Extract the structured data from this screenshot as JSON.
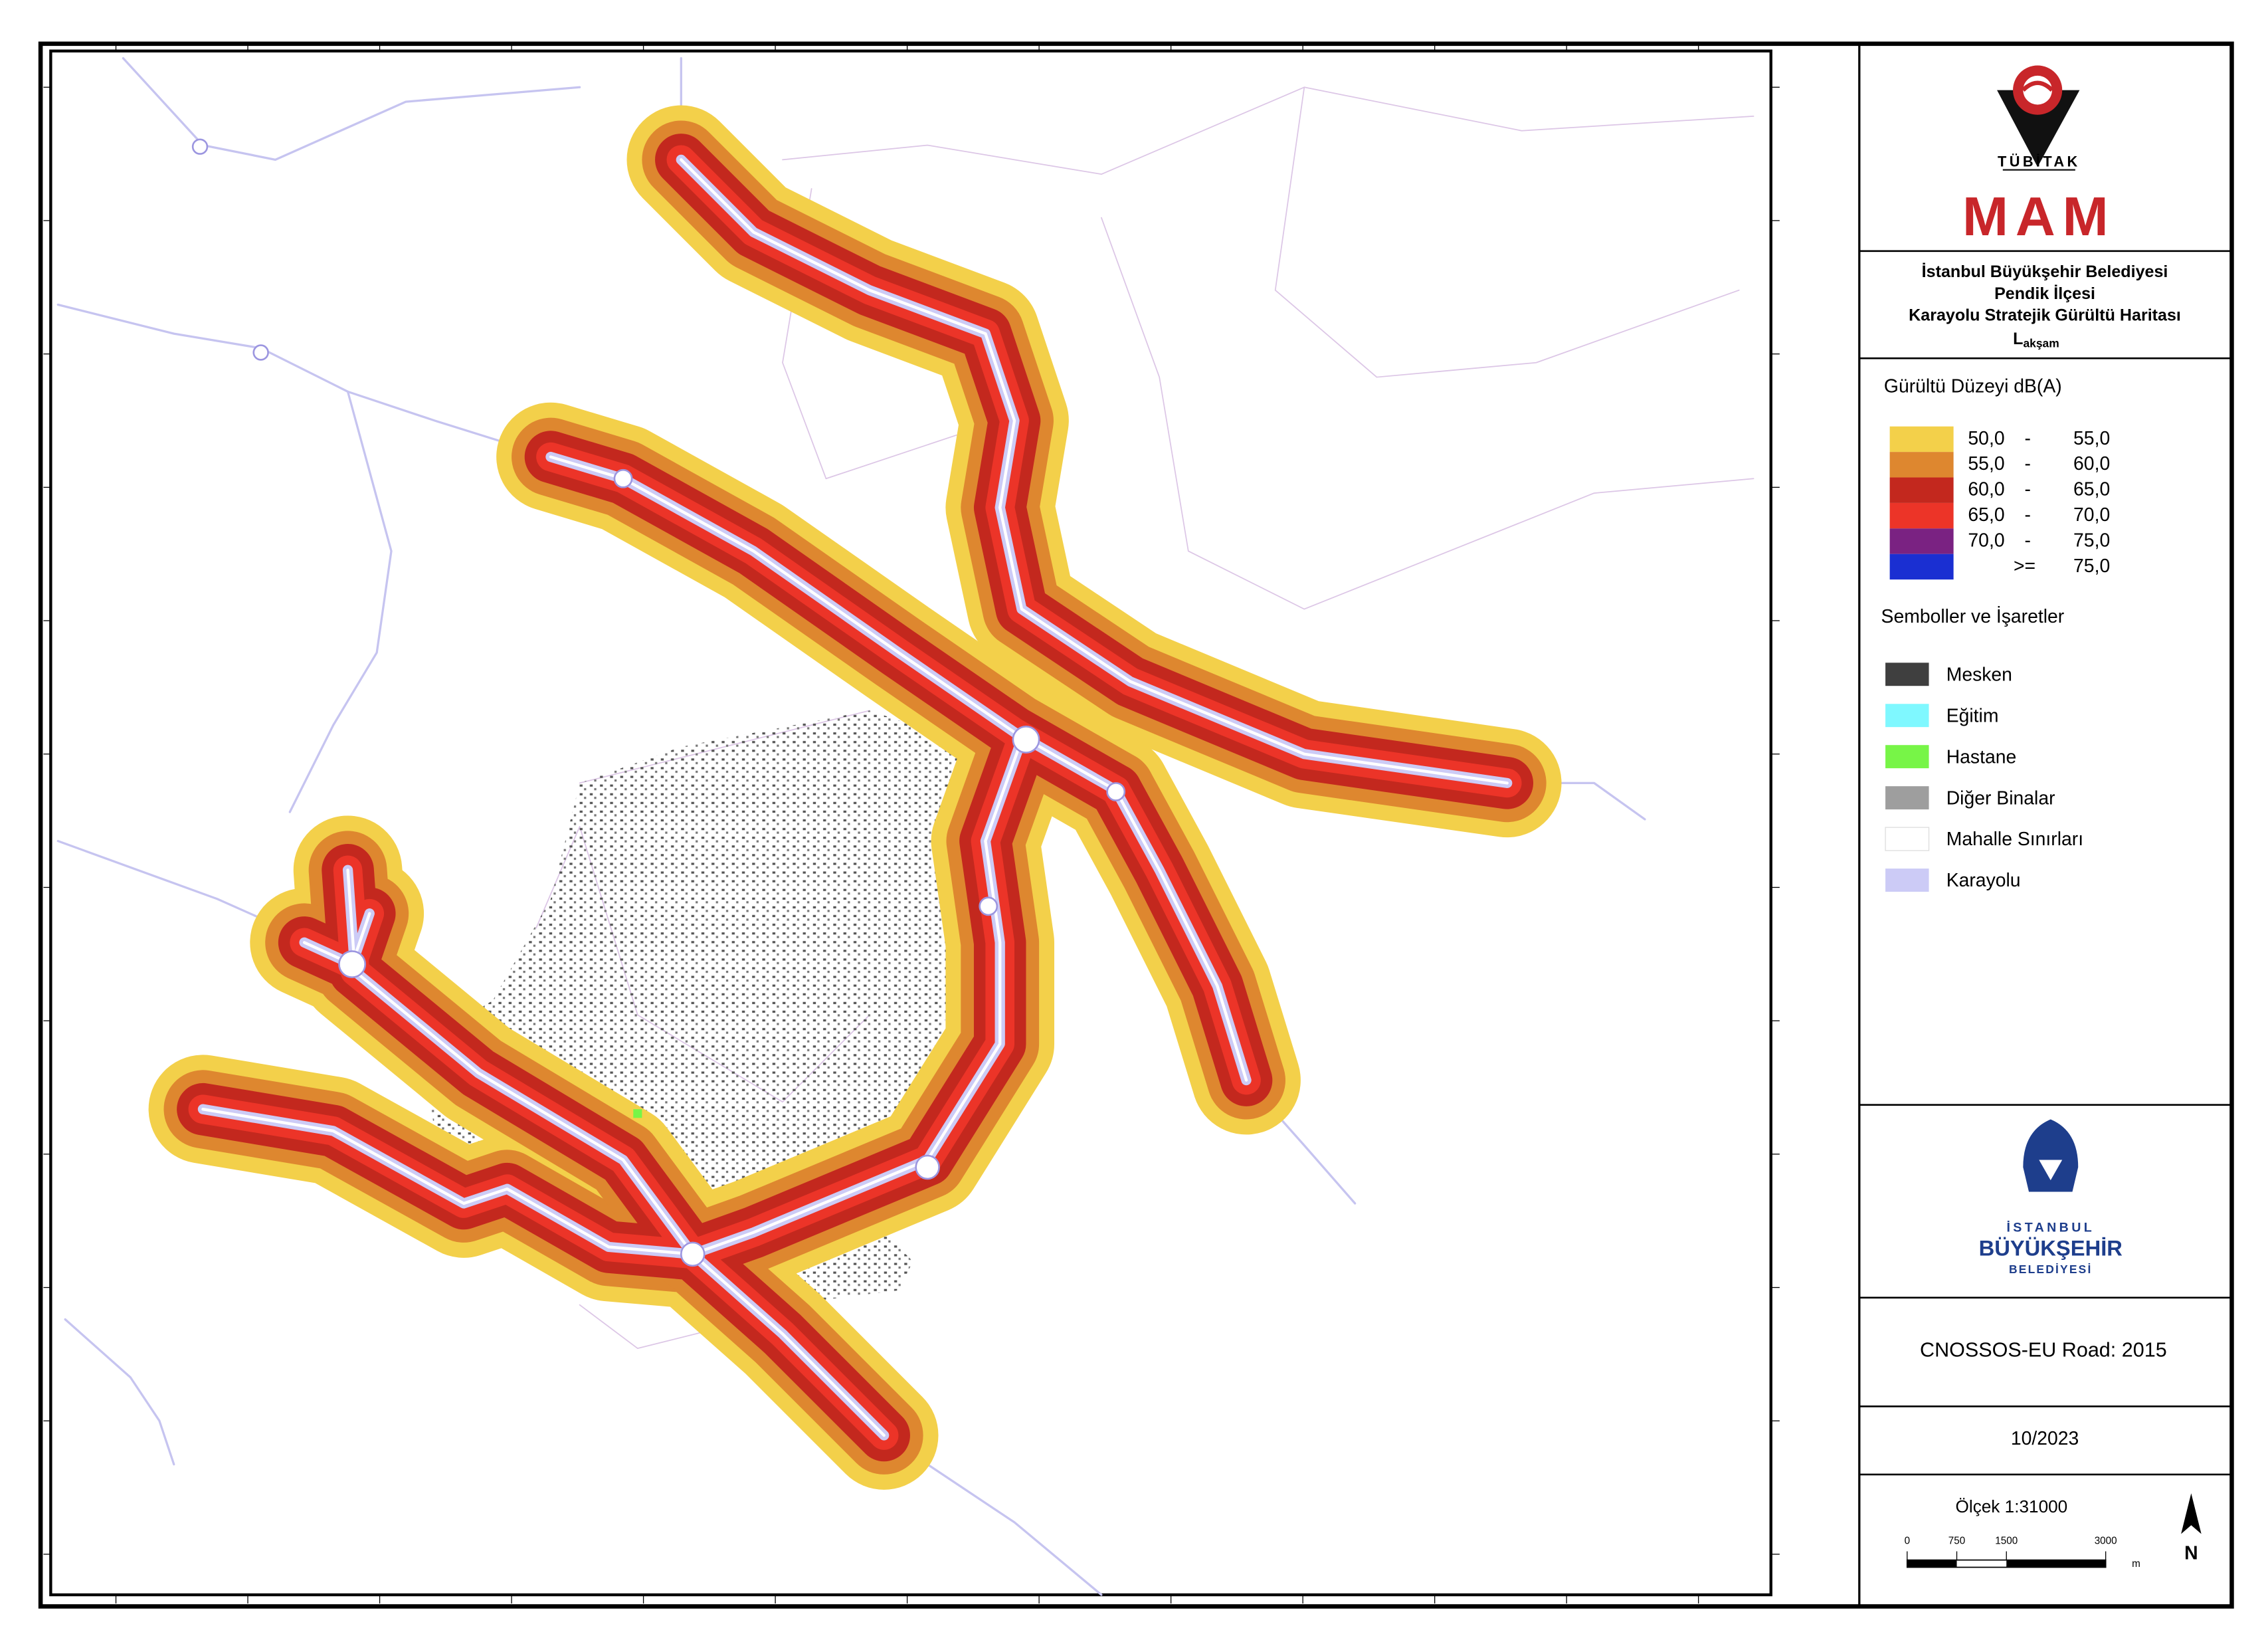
{
  "logo": {
    "org": "TÜBİTAK",
    "unit": "MAM"
  },
  "title": {
    "line1": "İstanbul Büyükşehir Belediyesi",
    "line2": "Pendik İlçesi",
    "line3": "Karayolu Stratejik Gürültü Haritası",
    "indicator": "L",
    "indicator_sub": "akşam"
  },
  "legend": {
    "title": "Gürültü Düzeyi dB(A)",
    "levels": [
      {
        "color": "#f3d04a",
        "from": "50,0",
        "sep": "-",
        "to": "55,0"
      },
      {
        "color": "#de872f",
        "from": "55,0",
        "sep": "-",
        "to": "60,0"
      },
      {
        "color": "#c3281e",
        "from": "60,0",
        "sep": "-",
        "to": "65,0"
      },
      {
        "color": "#ec3428",
        "from": "65,0",
        "sep": "-",
        "to": "70,0"
      },
      {
        "color": "#7a2282",
        "from": "70,0",
        "sep": "-",
        "to": "75,0"
      },
      {
        "color": "#1a2fd2",
        "sep": ">=",
        "to": "75,0"
      }
    ],
    "symbols_title": "Semboller ve İşaretler",
    "symbols": [
      {
        "color": "#3f3f3f",
        "label": "Mesken"
      },
      {
        "color": "#7ff8ff",
        "label": "Eğitim"
      },
      {
        "color": "#77f547",
        "label": "Hastane"
      },
      {
        "color": "#9e9e9e",
        "label": "Diğer Binalar"
      },
      {
        "color": "#ffffff",
        "label": "Mahalle Sınırları"
      },
      {
        "color": "#cccbf6",
        "label": "Karayolu"
      }
    ]
  },
  "ibb_logo": {
    "line1": "İSTANBUL",
    "line2": "BÜYÜKŞEHİR",
    "line3": "BELEDİYESİ"
  },
  "model": "CNOSSOS-EU Road: 2015",
  "date": "10/2023",
  "scale": {
    "title": "Ölçek 1:31000",
    "ticks": [
      0,
      750,
      1500,
      3000
    ],
    "unit": "m"
  },
  "north": "N"
}
